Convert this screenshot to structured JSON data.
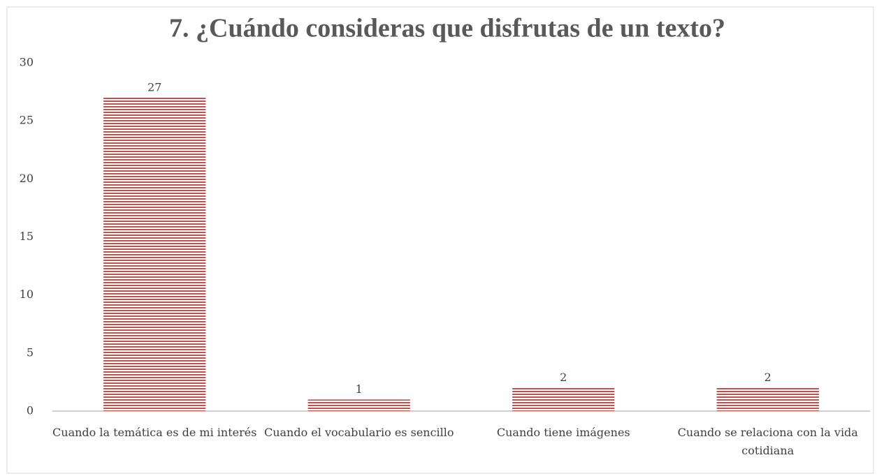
{
  "chart_data": {
    "type": "bar",
    "title": "7. ¿Cuándo consideras que disfrutas de un texto?",
    "categories": [
      "Cuando la temática es de mi interés",
      "Cuando el vocabulario es sencillo",
      "Cuando tiene imágenes",
      "Cuando se relaciona con la vida cotidiana"
    ],
    "values": [
      27,
      1,
      2,
      2
    ],
    "color": "#c0504d",
    "ylim": [
      0,
      30
    ],
    "yticks": [
      0,
      5,
      10,
      15,
      20,
      25,
      30
    ],
    "grid": false
  }
}
